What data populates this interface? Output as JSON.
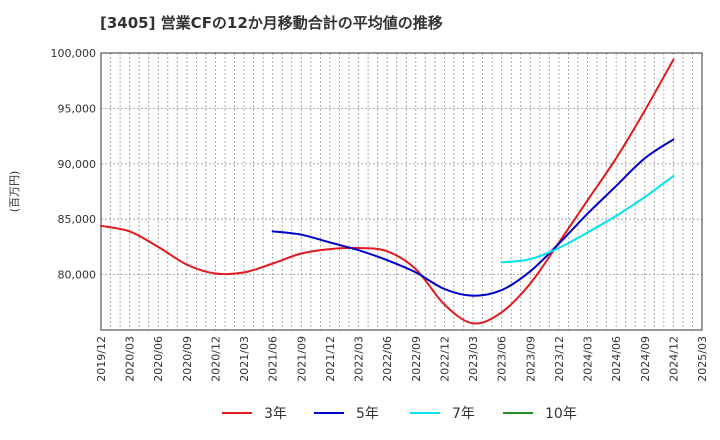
{
  "chart_data": {
    "type": "line",
    "title": "[3405]  営業CFの12か月移動合計の平均値の推移",
    "ylabel": "(百万円)",
    "xlabel": "",
    "ylim": [
      75000,
      100000
    ],
    "yticks": [
      80000,
      85000,
      90000,
      95000,
      100000
    ],
    "ytick_labels": [
      "80,000",
      "85,000",
      "90,000",
      "95,000",
      "100,000"
    ],
    "x_ticks": [
      "2019/12",
      "2020/03",
      "2020/06",
      "2020/09",
      "2020/12",
      "2021/03",
      "2021/06",
      "2021/09",
      "2021/12",
      "2022/03",
      "2022/06",
      "2022/09",
      "2022/12",
      "2023/03",
      "2023/06",
      "2023/09",
      "2023/12",
      "2024/03",
      "2024/06",
      "2024/09",
      "2024/12",
      "2025/03"
    ],
    "grid": true,
    "legend_position": "bottom",
    "series": [
      {
        "name": "3年",
        "color": "#e31a1c",
        "points": [
          [
            "2019/12",
            84400
          ],
          [
            "2020/03",
            83900
          ],
          [
            "2020/06",
            82500
          ],
          [
            "2020/09",
            80900
          ],
          [
            "2020/12",
            80100
          ],
          [
            "2021/03",
            80200
          ],
          [
            "2021/06",
            81000
          ],
          [
            "2021/09",
            81900
          ],
          [
            "2021/12",
            82300
          ],
          [
            "2022/03",
            82400
          ],
          [
            "2022/06",
            82100
          ],
          [
            "2022/09",
            80500
          ],
          [
            "2022/12",
            77300
          ],
          [
            "2023/03",
            75600
          ],
          [
            "2023/06",
            76600
          ],
          [
            "2023/09",
            79200
          ],
          [
            "2023/12",
            82900
          ],
          [
            "2024/03",
            86700
          ],
          [
            "2024/06",
            90500
          ],
          [
            "2024/09",
            94800
          ],
          [
            "2024/12",
            99400
          ]
        ]
      },
      {
        "name": "5年",
        "color": "#0000cc",
        "points": [
          [
            "2021/06",
            83900
          ],
          [
            "2021/09",
            83600
          ],
          [
            "2021/12",
            82900
          ],
          [
            "2022/03",
            82200
          ],
          [
            "2022/06",
            81300
          ],
          [
            "2022/09",
            80200
          ],
          [
            "2022/12",
            78700
          ],
          [
            "2023/03",
            78100
          ],
          [
            "2023/06",
            78600
          ],
          [
            "2023/09",
            80300
          ],
          [
            "2023/12",
            82800
          ],
          [
            "2024/03",
            85500
          ],
          [
            "2024/06",
            88000
          ],
          [
            "2024/09",
            90500
          ],
          [
            "2024/12",
            92200
          ]
        ]
      },
      {
        "name": "7年",
        "color": "#00e5ee",
        "points": [
          [
            "2023/06",
            81100
          ],
          [
            "2023/09",
            81400
          ],
          [
            "2023/12",
            82400
          ],
          [
            "2024/03",
            83800
          ],
          [
            "2024/06",
            85300
          ],
          [
            "2024/09",
            87000
          ],
          [
            "2024/12",
            88900
          ]
        ]
      },
      {
        "name": "10年",
        "color": "#228b22",
        "points": []
      }
    ]
  }
}
